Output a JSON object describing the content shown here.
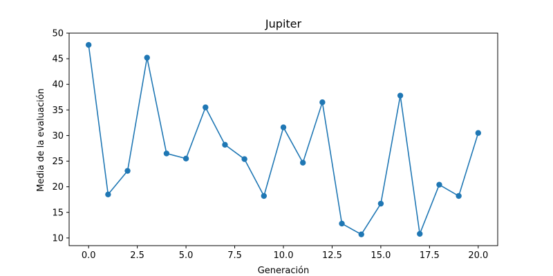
{
  "chart_data": {
    "type": "line",
    "title": "Jupiter",
    "xlabel": "Generación",
    "ylabel": "Media de la evaluación",
    "xlim": [
      -1.0,
      21.0
    ],
    "ylim": [
      8.5,
      50
    ],
    "x_ticks": [
      "0.0",
      "2.5",
      "5.0",
      "7.5",
      "10.0",
      "12.5",
      "15.0",
      "17.5",
      "20.0"
    ],
    "y_ticks": [
      "10",
      "15",
      "20",
      "25",
      "30",
      "35",
      "40",
      "45",
      "50"
    ],
    "grid": false,
    "markers": true,
    "color": "#1f77b4",
    "series": [
      {
        "x": [
          0,
          1,
          2,
          3,
          4,
          5,
          6,
          7,
          8,
          9,
          10,
          11,
          12,
          13,
          14,
          15,
          16,
          17,
          18,
          19,
          20
        ],
        "values": [
          47.7,
          18.5,
          23.1,
          45.2,
          26.5,
          25.5,
          35.5,
          28.2,
          25.4,
          18.2,
          31.6,
          24.7,
          36.5,
          12.8,
          10.7,
          16.7,
          37.8,
          10.8,
          20.4,
          18.2,
          30.5
        ]
      }
    ]
  }
}
